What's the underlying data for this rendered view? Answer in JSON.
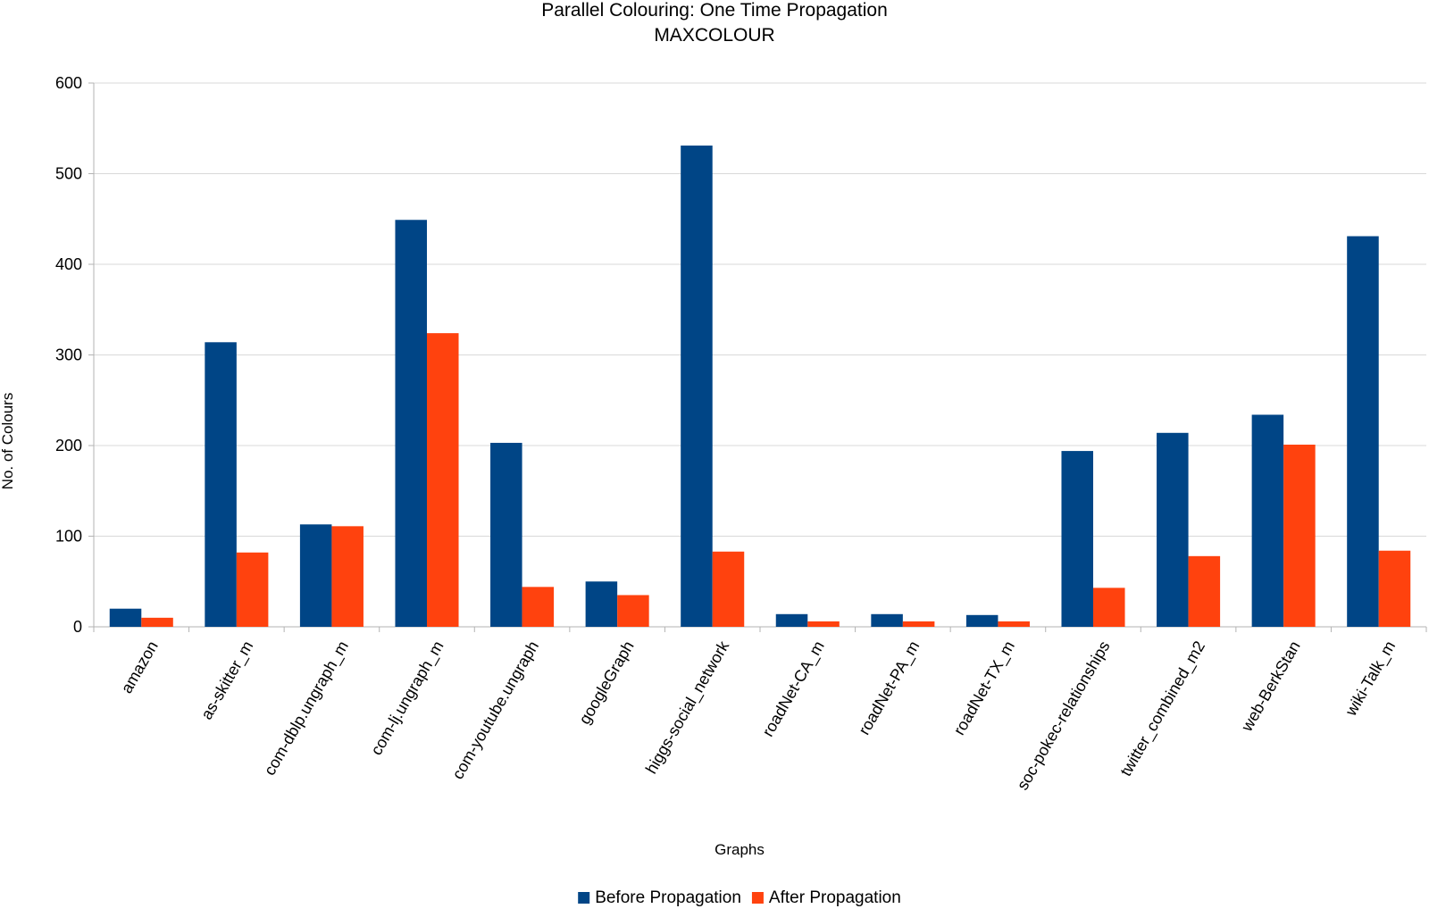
{
  "chart_data": {
    "type": "bar",
    "title": "Parallel Colouring: One Time Propagation",
    "subtitle": "MAXCOLOUR",
    "xlabel": "Graphs",
    "ylabel": "No. of Colours",
    "ylim": [
      0,
      600
    ],
    "yticks": [
      0,
      100,
      200,
      300,
      400,
      500,
      600
    ],
    "grid": true,
    "legend_position": "bottom",
    "categories": [
      "amazon",
      "as-skitter_m",
      "com-dblp.ungraph_m",
      "com-lj.ungraph_m",
      "com-youtube.ungraph",
      "googleGraph",
      "higgs-social_network",
      "roadNet-CA_m",
      "roadNet-PA_m",
      "roadNet-TX_m",
      "soc-pokec-relationships",
      "twitter_combined_m2",
      "web-BerkStan",
      "wiki-Talk_m"
    ],
    "series": [
      {
        "name": "Before Propagation",
        "color": "#004586",
        "values": [
          20,
          314,
          113,
          449,
          203,
          50,
          531,
          14,
          14,
          13,
          194,
          214,
          234,
          431
        ]
      },
      {
        "name": "After Propagation",
        "color": "#ff420e",
        "values": [
          10,
          82,
          111,
          324,
          44,
          35,
          83,
          6,
          6,
          6,
          43,
          78,
          201,
          84
        ]
      }
    ]
  }
}
